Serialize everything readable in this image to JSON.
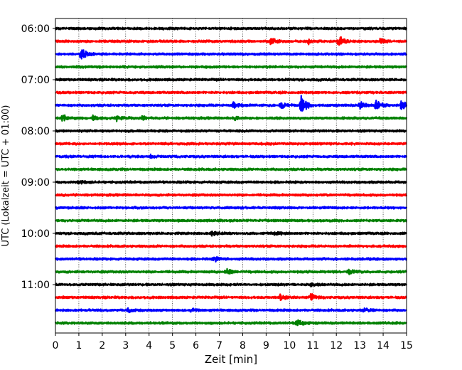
{
  "chart_data": {
    "type": "line",
    "title": "",
    "xlabel": "Zeit  [min]",
    "ylabel": "UTC (Lokalzeit = UTC + 01:00)",
    "xlim": [
      0,
      15
    ],
    "x_ticks": [
      0,
      1,
      2,
      3,
      4,
      5,
      6,
      7,
      8,
      9,
      10,
      11,
      12,
      13,
      14,
      15
    ],
    "x_tick_labels": [
      "0",
      "1",
      "2",
      "3",
      "4",
      "5",
      "6",
      "7",
      "8",
      "9",
      "10",
      "11",
      "12",
      "13",
      "14",
      "15"
    ],
    "y_tick_labels": [
      "06:00",
      "07:00",
      "08:00",
      "09:00",
      "10:00",
      "11:00"
    ],
    "y_tick_hour_index": [
      0,
      4,
      8,
      12,
      16,
      20
    ],
    "trace_start_time": "06:00",
    "trace_interval_min": 15,
    "grid": "vertical dotted",
    "color_cycle": [
      "#000000",
      "#ff0000",
      "#0000ff",
      "#008000"
    ],
    "series": [
      {
        "start": "06:00",
        "color": "#000000",
        "events": []
      },
      {
        "start": "06:15",
        "color": "#ff0000",
        "events": [
          {
            "t": 9.2,
            "amp": 0.35
          },
          {
            "t": 10.8,
            "amp": 0.3
          },
          {
            "t": 12.1,
            "amp": 0.55
          },
          {
            "t": 13.9,
            "amp": 0.25
          }
        ]
      },
      {
        "start": "06:30",
        "color": "#0000ff",
        "events": [
          {
            "t": 1.1,
            "amp": 0.6
          }
        ]
      },
      {
        "start": "06:45",
        "color": "#008000",
        "events": []
      },
      {
        "start": "07:00",
        "color": "#000000",
        "events": []
      },
      {
        "start": "07:15",
        "color": "#ff0000",
        "events": []
      },
      {
        "start": "07:30",
        "color": "#0000ff",
        "events": [
          {
            "t": 7.6,
            "amp": 0.35
          },
          {
            "t": 9.6,
            "amp": 0.3
          },
          {
            "t": 10.5,
            "amp": 1.0
          },
          {
            "t": 13.0,
            "amp": 0.35
          },
          {
            "t": 13.7,
            "amp": 0.55
          },
          {
            "t": 14.8,
            "amp": 0.5
          }
        ]
      },
      {
        "start": "07:45",
        "color": "#008000",
        "events": [
          {
            "t": 0.3,
            "amp": 0.3
          },
          {
            "t": 1.6,
            "amp": 0.2
          },
          {
            "t": 2.6,
            "amp": 0.25
          },
          {
            "t": 3.7,
            "amp": 0.2
          },
          {
            "t": 7.6,
            "amp": 0.2
          }
        ]
      },
      {
        "start": "08:00",
        "color": "#000000",
        "events": []
      },
      {
        "start": "08:15",
        "color": "#ff0000",
        "events": []
      },
      {
        "start": "08:30",
        "color": "#0000ff",
        "events": [
          {
            "t": 4.0,
            "amp": 0.2
          }
        ]
      },
      {
        "start": "08:45",
        "color": "#008000",
        "events": []
      },
      {
        "start": "09:00",
        "color": "#000000",
        "events": [
          {
            "t": 1.0,
            "amp": 0.2
          }
        ]
      },
      {
        "start": "09:15",
        "color": "#ff0000",
        "events": []
      },
      {
        "start": "09:30",
        "color": "#0000ff",
        "events": []
      },
      {
        "start": "09:45",
        "color": "#008000",
        "events": []
      },
      {
        "start": "10:00",
        "color": "#000000",
        "events": [
          {
            "t": 6.7,
            "amp": 0.25
          },
          {
            "t": 9.4,
            "amp": 0.25
          }
        ]
      },
      {
        "start": "10:15",
        "color": "#ff0000",
        "events": []
      },
      {
        "start": "10:30",
        "color": "#0000ff",
        "events": [
          {
            "t": 6.8,
            "amp": 0.25
          }
        ]
      },
      {
        "start": "10:45",
        "color": "#008000",
        "events": [
          {
            "t": 7.3,
            "amp": 0.3
          },
          {
            "t": 12.5,
            "amp": 0.25
          }
        ]
      },
      {
        "start": "11:00",
        "color": "#000000",
        "events": [
          {
            "t": 10.9,
            "amp": 0.2
          }
        ]
      },
      {
        "start": "11:15",
        "color": "#ff0000",
        "events": [
          {
            "t": 9.6,
            "amp": 0.25
          },
          {
            "t": 10.9,
            "amp": 0.35
          }
        ]
      },
      {
        "start": "11:30",
        "color": "#0000ff",
        "events": [
          {
            "t": 3.1,
            "amp": 0.2
          },
          {
            "t": 5.8,
            "amp": 0.15
          },
          {
            "t": 13.2,
            "amp": 0.2
          }
        ]
      },
      {
        "start": "11:45",
        "color": "#008000",
        "events": [
          {
            "t": 10.3,
            "amp": 0.45
          }
        ]
      }
    ]
  }
}
